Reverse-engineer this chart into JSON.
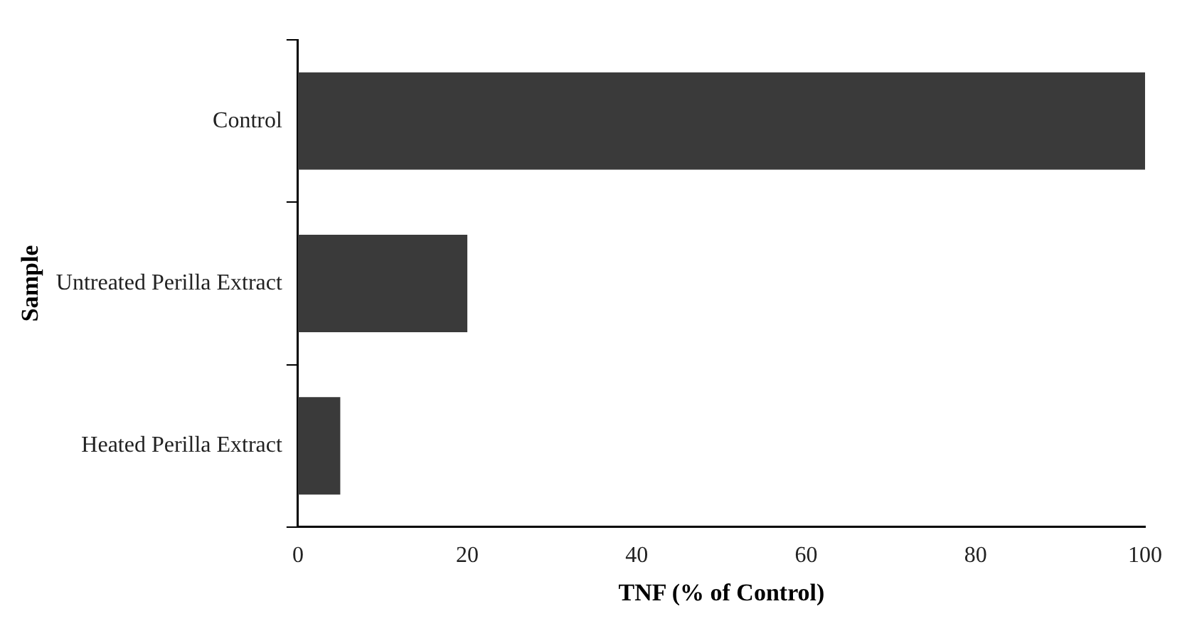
{
  "chart_data": {
    "type": "bar",
    "orientation": "horizontal",
    "xlabel": "TNF (% of Control)",
    "ylabel": "Sample",
    "categories": [
      "Control",
      "Untreated Perilla Extract",
      "Heated Perilla Extract"
    ],
    "values": [
      100,
      20,
      5
    ],
    "color": "#3a3a3a",
    "xlim": [
      0,
      100
    ],
    "xticks": [
      0,
      20,
      40,
      60,
      80,
      100
    ],
    "grid": false,
    "legend": false
  }
}
